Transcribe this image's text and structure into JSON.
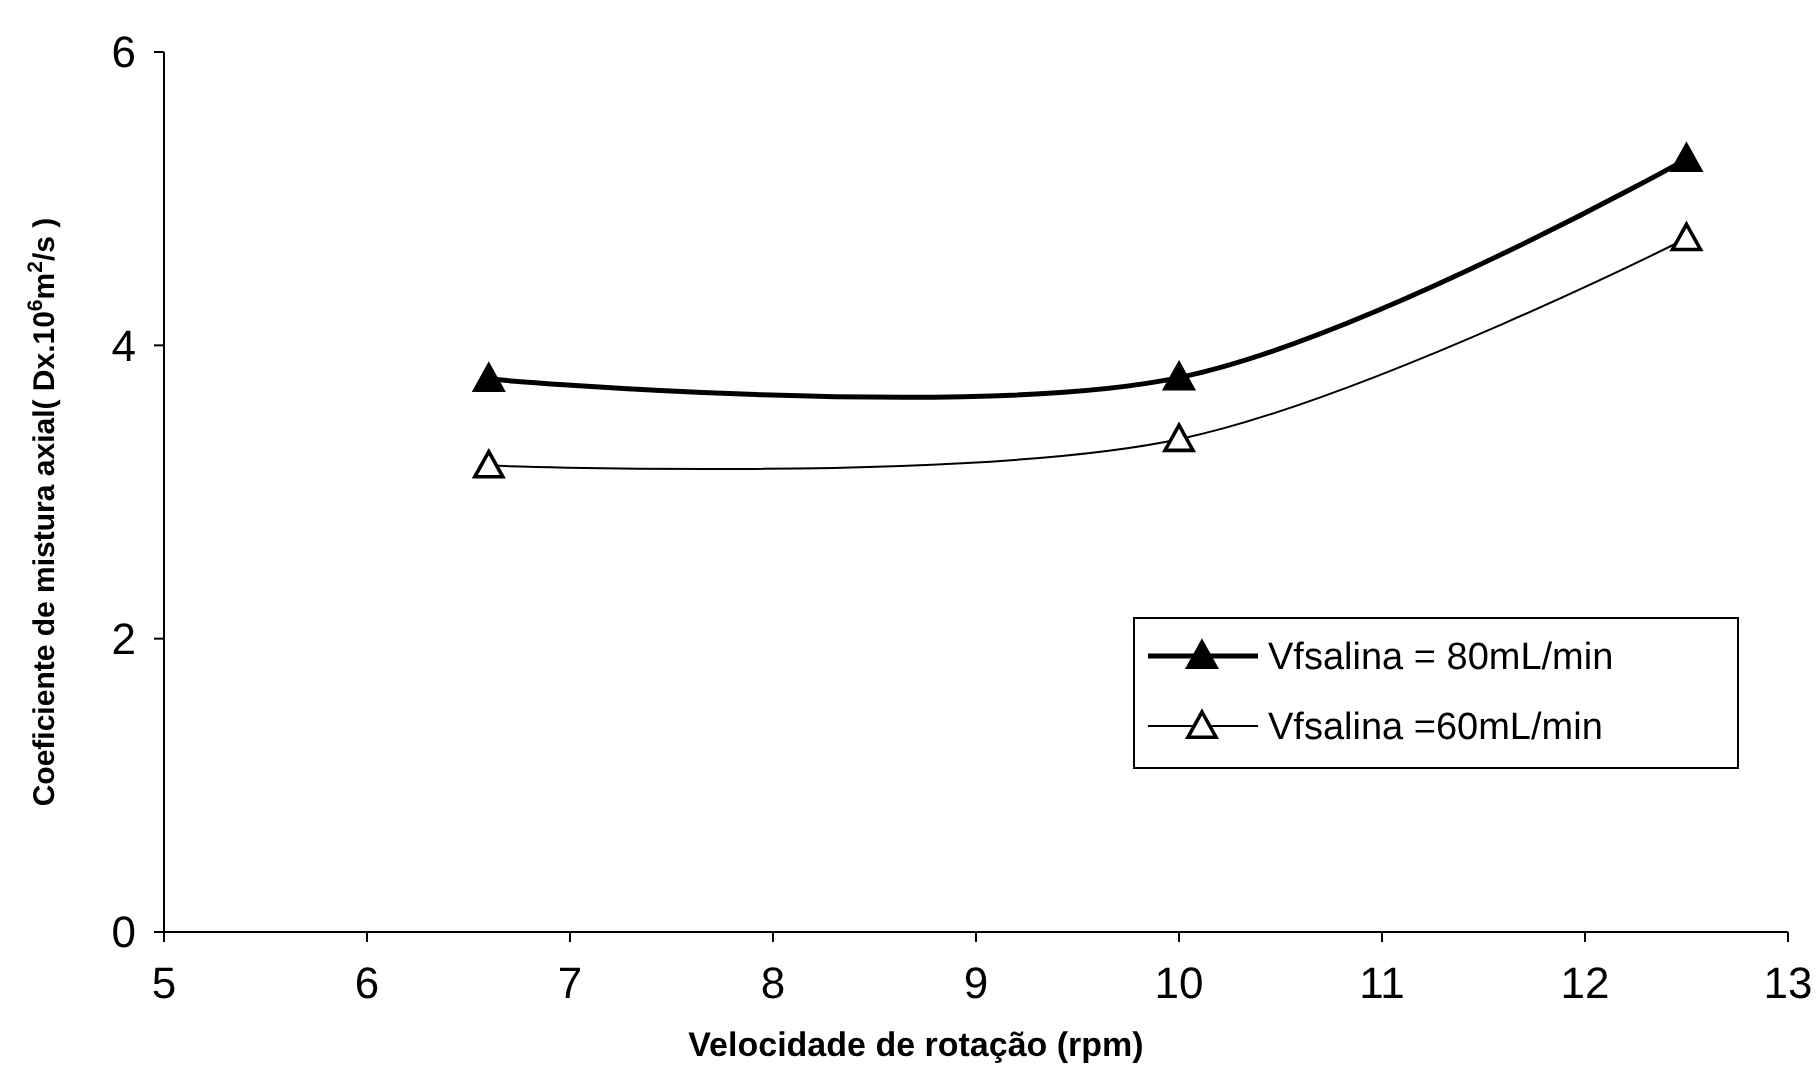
{
  "chart_data": {
    "type": "line",
    "xlabel": "Velocidade de rotação (rpm)",
    "ylabel": "Coeficiente de mistura axial( Dx.10$^{6}$m$^{2}$/s )",
    "xlim": [
      5,
      13
    ],
    "xticks": [
      5,
      6,
      7,
      8,
      9,
      10,
      11,
      12,
      13
    ],
    "ylim": [
      0,
      6
    ],
    "yticks": [
      0,
      2,
      4,
      6
    ],
    "grid": false,
    "legend": "bottom right",
    "line_style": "solid",
    "x": [
      6.6,
      10,
      12.5
    ],
    "series": [
      {
        "name": "Vfsalina = 80mL/min",
        "color": "#000000",
        "values": [
          3.77,
          3.78,
          5.27
        ],
        "marker": "triangle"
      },
      {
        "name": "Vfsalina =60mL/min",
        "color": "#000000",
        "values": [
          3.18,
          3.36,
          4.73
        ],
        "marker": "triangle"
      }
    ]
  }
}
